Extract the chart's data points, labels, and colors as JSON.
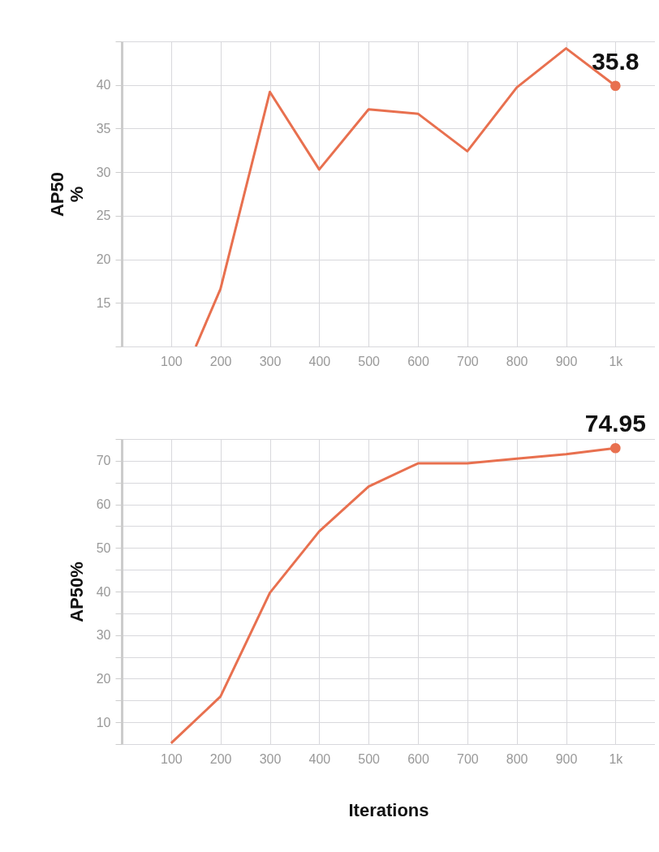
{
  "chart_data": [
    {
      "type": "line",
      "ylabel": "AP50 %",
      "x": [
        150,
        200,
        300,
        400,
        500,
        600,
        700,
        800,
        900,
        1000
      ],
      "series": [
        {
          "color": "#e8704f",
          "values": [
            10,
            16.6,
            39.2,
            30.3,
            37.2,
            36.7,
            32.4,
            39.7,
            44.2,
            39.9
          ]
        }
      ],
      "xlim": [
        0,
        1080
      ],
      "xticks": [
        100,
        200,
        300,
        400,
        500,
        600,
        700,
        800,
        900,
        {
          "value": 1000,
          "label": "1k"
        }
      ],
      "ylim": [
        10,
        45
      ],
      "yticks": [
        {
          "value": 10,
          "label": null
        },
        15,
        20,
        25,
        30,
        35,
        40,
        {
          "value": 45,
          "label": null
        }
      ],
      "grid": true,
      "marker": "none",
      "annotations": [
        {
          "text": "35.8",
          "x": 1000,
          "y": 39.9
        }
      ]
    },
    {
      "type": "line",
      "ylabel": "AP50%",
      "xlabel": "Iterations",
      "x": [
        100,
        200,
        300,
        400,
        500,
        600,
        700,
        800,
        900,
        1000
      ],
      "series": [
        {
          "color": "#e8704f",
          "values": [
            5.2,
            15.9,
            39.7,
            53.8,
            64.1,
            69.4,
            69.4,
            70.5,
            71.5,
            72.9
          ]
        }
      ],
      "xlim": [
        0,
        1080
      ],
      "xticks": [
        100,
        200,
        300,
        400,
        500,
        600,
        700,
        800,
        900,
        {
          "value": 1000,
          "label": "1k"
        }
      ],
      "ylim": [
        5,
        75
      ],
      "yticks": [
        {
          "value": 5,
          "label": null
        },
        10,
        {
          "value": 15,
          "label": null
        },
        20,
        {
          "value": 25,
          "label": null
        },
        30,
        {
          "value": 35,
          "label": null
        },
        40,
        {
          "value": 45,
          "label": null
        },
        50,
        {
          "value": 55,
          "label": null
        },
        60,
        {
          "value": 65,
          "label": null
        },
        70,
        {
          "value": 75,
          "label": null
        }
      ],
      "grid": true,
      "marker": "none",
      "annotations": [
        {
          "text": "74.95",
          "x": 1000,
          "y": 72.9
        }
      ]
    }
  ]
}
